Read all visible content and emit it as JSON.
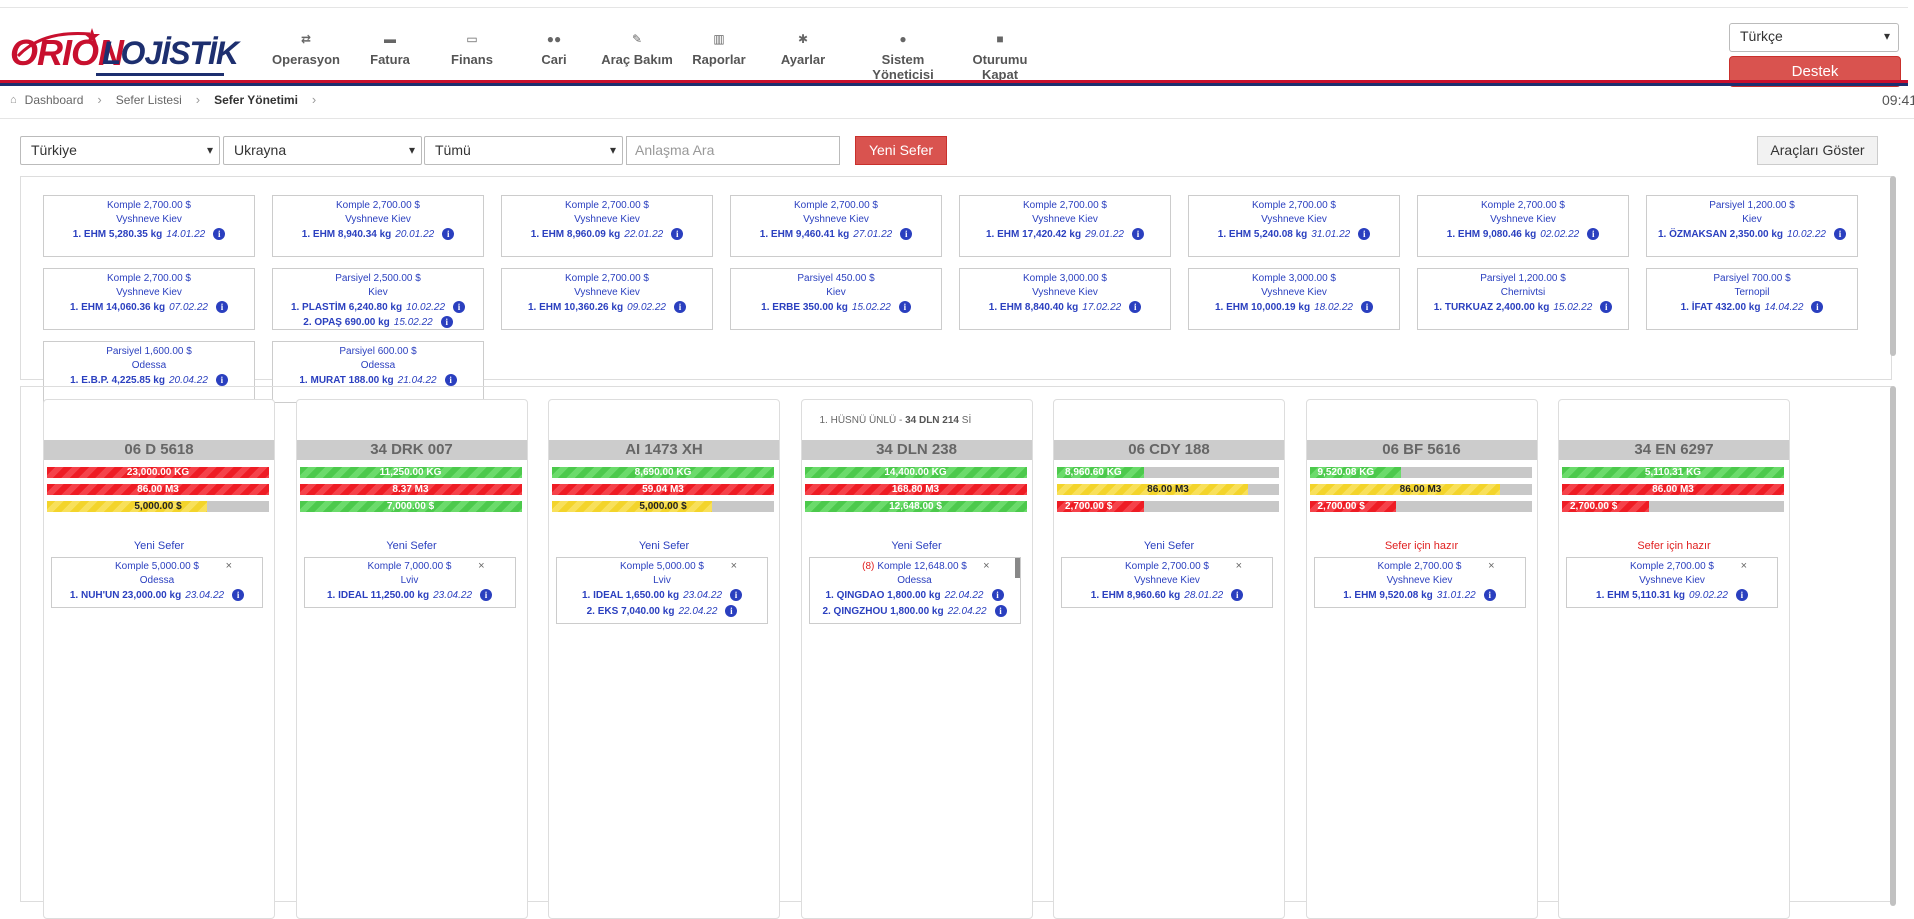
{
  "brand": {
    "part1": "ORION",
    "part2": "LOJİSTİK"
  },
  "menu": [
    {
      "icon": "shuffle-icon",
      "glyph": "⇄",
      "label": "Operasyon"
    },
    {
      "icon": "briefcase-icon",
      "glyph": "▬",
      "label": "Fatura"
    },
    {
      "icon": "money-icon",
      "glyph": "▭",
      "label": "Finans"
    },
    {
      "icon": "users-icon",
      "glyph": "●●",
      "label": "Cari"
    },
    {
      "icon": "wrench-icon",
      "glyph": "✎",
      "label": "Araç Bakım"
    },
    {
      "icon": "bar-chart-icon",
      "glyph": "▥",
      "label": "Raporlar"
    },
    {
      "icon": "gear-icon",
      "glyph": "✱",
      "label": "Ayarlar"
    },
    {
      "icon": "user-icon",
      "glyph": "●",
      "label": "Sistem Yöneticisi"
    },
    {
      "icon": "lock-icon",
      "glyph": "■",
      "label": "Oturumu Kapat"
    }
  ],
  "language": {
    "selected": "Türkçe"
  },
  "support_label": "Destek",
  "breadcrumb": {
    "home": "Dashboard",
    "list": "Sefer Listesi",
    "current": "Sefer Yönetimi"
  },
  "clock": "09:41",
  "filters": {
    "origin": "Türkiye",
    "destination": "Ukrayna",
    "type": "Tümü",
    "search_placeholder": "Anlaşma Ara",
    "new_trip": "Yeni Sefer",
    "show_vehicles": "Araçları Göster"
  },
  "pool_cards": [
    {
      "terms": "Komple 2,700.00 $",
      "city": "Vyshneve Kiev",
      "lines": [
        {
          "text": "1. EHM 5,280.35 kg",
          "date": "14.01.22"
        }
      ]
    },
    {
      "terms": "Komple 2,700.00 $",
      "city": "Vyshneve Kiev",
      "lines": [
        {
          "text": "1. EHM 8,940.34 kg",
          "date": "20.01.22"
        }
      ]
    },
    {
      "terms": "Komple 2,700.00 $",
      "city": "Vyshneve Kiev",
      "lines": [
        {
          "text": "1. EHM 8,960.09 kg",
          "date": "22.01.22"
        }
      ]
    },
    {
      "terms": "Komple 2,700.00 $",
      "city": "Vyshneve Kiev",
      "lines": [
        {
          "text": "1. EHM 9,460.41 kg",
          "date": "27.01.22"
        }
      ]
    },
    {
      "terms": "Komple 2,700.00 $",
      "city": "Vyshneve Kiev",
      "lines": [
        {
          "text": "1. EHM 17,420.42 kg",
          "date": "29.01.22"
        }
      ]
    },
    {
      "terms": "Komple 2,700.00 $",
      "city": "Vyshneve Kiev",
      "lines": [
        {
          "text": "1. EHM 5,240.08 kg",
          "date": "31.01.22"
        }
      ]
    },
    {
      "terms": "Komple 2,700.00 $",
      "city": "Vyshneve Kiev",
      "lines": [
        {
          "text": "1. EHM 9,080.46 kg",
          "date": "02.02.22"
        }
      ]
    },
    {
      "terms": "Parsiyel 1,200.00 $",
      "city": "Kiev",
      "lines": [
        {
          "text": "1. ÖZMAKSAN 2,350.00 kg",
          "date": "10.02.22"
        }
      ]
    },
    {
      "terms": "Komple 2,700.00 $",
      "city": "Vyshneve Kiev",
      "lines": [
        {
          "text": "1. EHM 14,060.36 kg",
          "date": "07.02.22"
        }
      ]
    },
    {
      "terms": "Parsiyel 2,500.00 $",
      "city": "Kiev",
      "lines": [
        {
          "text": "1. PLASTİM 6,240.80 kg",
          "date": "10.02.22"
        },
        {
          "text": "2. OPAŞ 690.00 kg",
          "date": "15.02.22"
        }
      ]
    },
    {
      "terms": "Komple 2,700.00 $",
      "city": "Vyshneve Kiev",
      "lines": [
        {
          "text": "1. EHM 10,360.26 kg",
          "date": "09.02.22"
        }
      ]
    },
    {
      "terms": "Parsiyel 450.00 $",
      "city": "Kiev",
      "lines": [
        {
          "text": "1. ERBE 350.00 kg",
          "date": "15.02.22"
        }
      ]
    },
    {
      "terms": "Komple 3,000.00 $",
      "city": "Vyshneve Kiev",
      "lines": [
        {
          "text": "1. EHM 8,840.40 kg",
          "date": "17.02.22"
        }
      ]
    },
    {
      "terms": "Komple 3,000.00 $",
      "city": "Vyshneve Kiev",
      "lines": [
        {
          "text": "1. EHM 10,000.19 kg",
          "date": "18.02.22"
        }
      ]
    },
    {
      "terms": "Parsiyel 1,200.00 $",
      "city": "Chernivtsi",
      "lines": [
        {
          "text": "1. TURKUAZ 2,400.00 kg",
          "date": "15.02.22"
        }
      ]
    },
    {
      "terms": "Parsiyel 700.00 $",
      "city": "Ternopil",
      "lines": [
        {
          "text": "1. İFAT 432.00 kg",
          "date": "14.04.22"
        }
      ]
    },
    {
      "terms": "Parsiyel 1,600.00 $",
      "city": "Odessa",
      "lines": [
        {
          "text": "1. E.B.P. 4,225.85 kg",
          "date": "20.04.22"
        }
      ]
    },
    {
      "terms": "Parsiyel 600.00 $",
      "city": "Odessa",
      "lines": [
        {
          "text": "1. MURAT 188.00 kg",
          "date": "21.04.22"
        }
      ]
    }
  ],
  "trucks": [
    {
      "driver_text": "",
      "plate": "06 D 5618",
      "bars": [
        {
          "label": "23,000.00 KG",
          "pct": 100,
          "color": "red"
        },
        {
          "label": "86.00 M3",
          "pct": 100,
          "color": "red"
        },
        {
          "label": "5,000.00 $",
          "pct": 72,
          "color": "yellow"
        }
      ],
      "status": "Yeni Sefer",
      "ready": false,
      "load": {
        "count": "",
        "terms": "Komple 5,000.00 $",
        "city": "Odessa",
        "rows": [
          {
            "text": "1. NUH'UN 23,000.00 kg",
            "date": "23.04.22"
          }
        ]
      }
    },
    {
      "driver_text": "",
      "plate": "34 DRK 007",
      "bars": [
        {
          "label": "11,250.00 KG",
          "pct": 100,
          "color": "green"
        },
        {
          "label": "8.37 M3",
          "pct": 100,
          "color": "red"
        },
        {
          "label": "7,000.00 $",
          "pct": 100,
          "color": "green"
        }
      ],
      "status": "Yeni Sefer",
      "ready": false,
      "load": {
        "count": "",
        "terms": "Komple 7,000.00 $",
        "city": "Lviv",
        "rows": [
          {
            "text": "1. IDEAL 11,250.00 kg",
            "date": "23.04.22"
          }
        ]
      }
    },
    {
      "driver_text": "",
      "plate": "AI 1473 XH",
      "bars": [
        {
          "label": "8,690.00 KG",
          "pct": 100,
          "color": "green"
        },
        {
          "label": "59.04 M3",
          "pct": 100,
          "color": "red"
        },
        {
          "label": "5,000.00 $",
          "pct": 72,
          "color": "yellow"
        }
      ],
      "status": "Yeni Sefer",
      "ready": false,
      "load": {
        "count": "",
        "terms": "Komple 5,000.00 $",
        "city": "Lviv",
        "rows": [
          {
            "text": "1. IDEAL 1,650.00 kg",
            "date": "23.04.22"
          },
          {
            "text": "2. EKS 7,040.00 kg",
            "date": "22.04.22"
          }
        ]
      }
    },
    {
      "driver_text": "1. HÜSNÜ ÜNLÜ - ",
      "driver_plate": "34 DLN 214",
      "driver_suffix": " Sİ",
      "plate": "34 DLN 238",
      "bars": [
        {
          "label": "14,400.00 KG",
          "pct": 100,
          "color": "green"
        },
        {
          "label": "168.80 M3",
          "pct": 100,
          "color": "red"
        },
        {
          "label": "12,648.00 $",
          "pct": 100,
          "color": "green"
        }
      ],
      "status": "Yeni Sefer",
      "ready": false,
      "load": {
        "count": "(8)",
        "terms": "Komple 12,648.00 $",
        "city": "Odessa",
        "rows": [
          {
            "text": "1. QINGDAO 1,800.00 kg",
            "date": "22.04.22"
          },
          {
            "text": "2. QINGZHOU 1,800.00 kg",
            "date": "22.04.22"
          }
        ]
      }
    },
    {
      "driver_text": "",
      "plate": "06 CDY 188",
      "bars": [
        {
          "label": "8,960.60 KG",
          "pct": 39,
          "color": "green"
        },
        {
          "label": "86.00 M3",
          "pct": 86,
          "color": "yellow"
        },
        {
          "label": "2,700.00 $",
          "pct": 39,
          "color": "red"
        }
      ],
      "status": "Yeni Sefer",
      "ready": false,
      "load": {
        "count": "",
        "terms": "Komple 2,700.00 $",
        "city": "Vyshneve Kiev",
        "rows": [
          {
            "text": "1. EHM 8,960.60 kg",
            "date": "28.01.22"
          }
        ]
      }
    },
    {
      "driver_text": "",
      "plate": "06 BF 5616",
      "bars": [
        {
          "label": "9,520.08 KG",
          "pct": 41,
          "color": "green"
        },
        {
          "label": "86.00 M3",
          "pct": 86,
          "color": "yellow"
        },
        {
          "label": "2,700.00 $",
          "pct": 39,
          "color": "red"
        }
      ],
      "status": "Sefer için hazır",
      "ready": true,
      "load": {
        "count": "",
        "terms": "Komple 2,700.00 $",
        "city": "Vyshneve Kiev",
        "rows": [
          {
            "text": "1. EHM 9,520.08 kg",
            "date": "31.01.22"
          }
        ]
      }
    },
    {
      "driver_text": "",
      "plate": "34 EN 6297",
      "bars": [
        {
          "label": "5,110.31 KG",
          "pct": 100,
          "color": "green"
        },
        {
          "label": "86.00 M3",
          "pct": 100,
          "color": "red"
        },
        {
          "label": "2,700.00 $",
          "pct": 39,
          "color": "red"
        }
      ],
      "status": "Sefer için hazır",
      "ready": true,
      "load": {
        "count": "",
        "terms": "Komple 2,700.00 $",
        "city": "Vyshneve Kiev",
        "rows": [
          {
            "text": "1. EHM 5,110.31 kg",
            "date": "09.02.22"
          }
        ]
      }
    }
  ]
}
